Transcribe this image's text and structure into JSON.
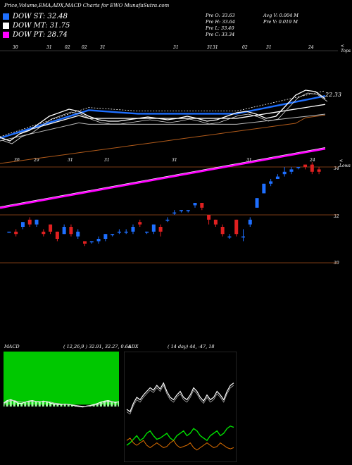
{
  "title": "Price,Volume,EMA,ADX,MACD Charts for EWO MunafaSutra.com",
  "legend": [
    {
      "label": "DOW ST: 32.48",
      "color": "#1e6fff"
    },
    {
      "label": "DOW MT: 31.75",
      "color": "#ffffff"
    },
    {
      "label": "DOW PT: 28.74",
      "color": "#ff00ff"
    }
  ],
  "stats": {
    "pre_o": "Pre O: 33.63",
    "pre_h": "Pre H: 33.64",
    "pre_l": "Pre L: 33.40",
    "pre_c": "Pre C: 33.34",
    "avg_v": "Avg V: 0.004 M",
    "pre_v": "Pre V: 0.019 M"
  },
  "axis_labels": {
    "top": "< Tops",
    "low": "< Lows",
    "ema_last": "22.33",
    "price_34": "34",
    "price_32": "32",
    "price_30": "30"
  },
  "top_dates": [
    "30",
    "31",
    "02",
    "02",
    "31",
    "31",
    "31",
    "31",
    "02",
    "31",
    "24"
  ],
  "low_dates": [
    "30",
    "29",
    "31",
    "31",
    "31",
    "31",
    "24"
  ],
  "macd": {
    "label": "MACD",
    "params": "( 12,26,9 ) 32.91, 32.27, 0.64",
    "values": [
      0.35,
      0.6,
      0.7,
      0.55,
      0.35,
      0.3,
      0.45,
      0.55,
      0.6,
      0.5,
      0.45,
      0.55,
      0.5,
      0.35,
      0.25,
      0.2,
      0.2,
      0.25,
      0.2,
      0.15,
      0.05,
      0.0,
      -0.05,
      0.05,
      0.1,
      0.2,
      0.3,
      0.45,
      0.55,
      0.6,
      0.5,
      0.4,
      0.5
    ],
    "signal": [
      0.3,
      0.45,
      0.6,
      0.6,
      0.5,
      0.45,
      0.45,
      0.5,
      0.55,
      0.52,
      0.5,
      0.5,
      0.5,
      0.45,
      0.35,
      0.3,
      0.25,
      0.25,
      0.22,
      0.18,
      0.12,
      0.06,
      0.02,
      0.02,
      0.06,
      0.12,
      0.2,
      0.3,
      0.42,
      0.5,
      0.5,
      0.46,
      0.47
    ]
  },
  "adx": {
    "label": "ADX",
    "params": "( 14 day) 44, -47, 18",
    "adx": [
      40,
      38,
      45,
      50,
      48,
      52,
      55,
      58,
      56,
      60,
      57,
      62,
      55,
      50,
      48,
      52,
      55,
      50,
      48,
      52,
      58,
      55,
      50,
      47,
      52,
      48,
      50,
      55,
      52,
      48,
      55,
      60,
      62
    ],
    "plus_di": [
      10,
      12,
      15,
      18,
      14,
      16,
      20,
      22,
      18,
      15,
      16,
      18,
      20,
      16,
      14,
      18,
      20,
      22,
      18,
      20,
      24,
      22,
      18,
      16,
      14,
      18,
      20,
      22,
      18,
      20,
      24,
      26,
      25
    ],
    "minus_di": [
      14,
      16,
      12,
      10,
      12,
      14,
      10,
      8,
      10,
      12,
      10,
      8,
      9,
      12,
      14,
      10,
      8,
      9,
      10,
      12,
      8,
      6,
      8,
      10,
      12,
      10,
      8,
      9,
      12,
      10,
      8,
      7,
      8
    ]
  },
  "chart_data": {
    "type": "candlestick",
    "ticker": "EWO",
    "ylabel_ticks": [
      "34",
      "32",
      "30"
    ],
    "candles": [
      {
        "o": 31.3,
        "c": 31.3,
        "h": 31.3,
        "l": 31.3
      },
      {
        "o": 31.3,
        "c": 31.2,
        "h": 31.4,
        "l": 31.1
      },
      {
        "o": 31.5,
        "c": 31.7,
        "h": 31.7,
        "l": 31.4
      },
      {
        "o": 31.8,
        "c": 31.6,
        "h": 31.9,
        "l": 31.5
      },
      {
        "o": 31.6,
        "c": 31.8,
        "h": 31.8,
        "l": 31.5
      },
      {
        "o": 31.3,
        "c": 31.2,
        "h": 31.4,
        "l": 31.1
      },
      {
        "o": 31.6,
        "c": 31.3,
        "h": 31.6,
        "l": 31.2
      },
      {
        "o": 31.3,
        "c": 31.0,
        "h": 31.3,
        "l": 30.9
      },
      {
        "o": 31.2,
        "c": 31.5,
        "h": 31.6,
        "l": 31.2
      },
      {
        "o": 31.5,
        "c": 31.2,
        "h": 31.6,
        "l": 31.1
      },
      {
        "o": 31.1,
        "c": 31.3,
        "h": 31.4,
        "l": 31.0
      },
      {
        "o": 30.9,
        "c": 30.8,
        "h": 30.9,
        "l": 30.7
      },
      {
        "o": 30.9,
        "c": 30.9,
        "h": 30.9,
        "l": 30.8
      },
      {
        "o": 30.9,
        "c": 31.0,
        "h": 31.1,
        "l": 30.8
      },
      {
        "o": 31.0,
        "c": 31.2,
        "h": 31.2,
        "l": 30.9
      },
      {
        "o": 31.2,
        "c": 31.2,
        "h": 31.2,
        "l": 31.1
      },
      {
        "o": 31.3,
        "c": 31.3,
        "h": 31.4,
        "l": 31.2
      },
      {
        "o": 31.3,
        "c": 31.3,
        "h": 31.4,
        "l": 31.2
      },
      {
        "o": 31.3,
        "c": 31.5,
        "h": 31.6,
        "l": 31.2
      },
      {
        "o": 31.7,
        "c": 31.6,
        "h": 31.8,
        "l": 31.5
      },
      {
        "o": 31.3,
        "c": 31.3,
        "h": 31.3,
        "l": 31.2
      },
      {
        "o": 31.3,
        "c": 31.6,
        "h": 31.6,
        "l": 31.2
      },
      {
        "o": 31.5,
        "c": 31.3,
        "h": 31.6,
        "l": 31.1
      },
      {
        "o": 31.8,
        "c": 31.8,
        "h": 31.9,
        "l": 31.7
      },
      {
        "o": 32.1,
        "c": 32.1,
        "h": 32.2,
        "l": 32.0
      },
      {
        "o": 32.2,
        "c": 32.2,
        "h": 32.2,
        "l": 32.1
      },
      {
        "o": 32.2,
        "c": 32.2,
        "h": 32.2,
        "l": 32.1
      },
      {
        "o": 32.4,
        "c": 32.5,
        "h": 32.5,
        "l": 32.3
      },
      {
        "o": 32.5,
        "c": 32.3,
        "h": 32.5,
        "l": 32.2
      },
      {
        "o": 32.0,
        "c": 31.8,
        "h": 32.0,
        "l": 31.6
      },
      {
        "o": 31.8,
        "c": 31.6,
        "h": 31.8,
        "l": 31.5
      },
      {
        "o": 31.5,
        "c": 31.2,
        "h": 31.6,
        "l": 31.1
      },
      {
        "o": 31.1,
        "c": 31.1,
        "h": 31.2,
        "l": 31.0
      },
      {
        "o": 31.8,
        "c": 31.2,
        "h": 31.8,
        "l": 31.1
      },
      {
        "o": 31.1,
        "c": 31.1,
        "h": 31.4,
        "l": 30.9
      },
      {
        "o": 31.6,
        "c": 31.8,
        "h": 31.9,
        "l": 31.5
      },
      {
        "o": 32.3,
        "c": 32.7,
        "h": 32.7,
        "l": 32.3
      },
      {
        "o": 32.9,
        "c": 33.3,
        "h": 33.3,
        "l": 32.9
      },
      {
        "o": 33.3,
        "c": 33.4,
        "h": 33.5,
        "l": 33.2
      },
      {
        "o": 33.5,
        "c": 33.6,
        "h": 33.7,
        "l": 33.5
      },
      {
        "o": 33.7,
        "c": 33.8,
        "h": 34.0,
        "l": 33.6
      },
      {
        "o": 33.8,
        "c": 33.9,
        "h": 34.0,
        "l": 33.7
      },
      {
        "o": 34.0,
        "c": 34.0,
        "h": 34.0,
        "l": 33.9
      },
      {
        "o": 34.1,
        "c": 34.0,
        "h": 34.1,
        "l": 33.9
      },
      {
        "o": 34.1,
        "c": 33.8,
        "h": 34.2,
        "l": 33.7
      },
      {
        "o": 33.9,
        "c": 33.8,
        "h": 34.0,
        "l": 33.7
      }
    ]
  }
}
